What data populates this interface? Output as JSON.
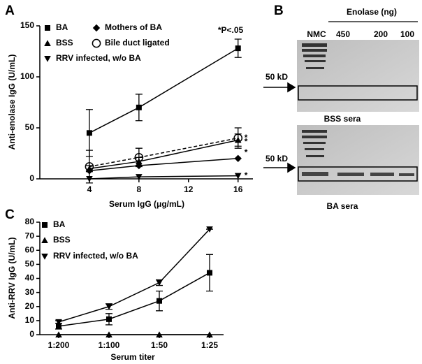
{
  "chart_data": [
    {
      "type": "line",
      "panel": "A",
      "annotation": "*P<.05",
      "x_label": "Serum IgG (μg/mL)",
      "y_label": "Anti-enolase IgG (U/mL)",
      "x": [
        4,
        8,
        16
      ],
      "xlim": [
        0,
        17.2
      ],
      "xticks": [
        4,
        8,
        12,
        16
      ],
      "ylim": [
        0,
        150
      ],
      "yticks": [
        0,
        50,
        100,
        150
      ],
      "series": [
        {
          "name": "BA",
          "color": "#000000",
          "marker": "square",
          "values": [
            45,
            70,
            128
          ],
          "errors": [
            23,
            13,
            9
          ]
        },
        {
          "name": "Mothers of BA",
          "color": "#000000",
          "marker": "diamond",
          "values": [
            8,
            13,
            20
          ],
          "end_label": "*"
        },
        {
          "name": "BSS",
          "color": "#000000",
          "marker": "triangle-up",
          "values": [
            10,
            17,
            38
          ],
          "errors": [
            3,
            4,
            6
          ],
          "end_label": "*"
        },
        {
          "name": "Bile duct ligated",
          "color": "#000000",
          "marker": "circle-open",
          "dashed": true,
          "values": [
            12,
            21,
            40
          ],
          "errors": [
            16,
            9,
            10
          ],
          "end_label": "*"
        },
        {
          "name": "RRV infected, w/o BA",
          "color": "#000000",
          "marker": "triangle-down",
          "values": [
            0,
            2,
            3
          ],
          "end_label": "*"
        }
      ]
    },
    {
      "type": "line",
      "panel": "C",
      "x_label": "Serum titer",
      "y_label": "Anti-RRV IgG (U/mL)",
      "categories": [
        "1:200",
        "1:100",
        "1:50",
        "1:25"
      ],
      "ylim": [
        0,
        80
      ],
      "yticks": [
        0,
        10,
        20,
        30,
        40,
        50,
        60,
        70,
        80
      ],
      "series": [
        {
          "name": "BA",
          "color": "#000000",
          "marker": "square",
          "values": [
            6,
            11,
            24,
            44
          ],
          "errors": [
            2,
            4,
            7,
            13
          ]
        },
        {
          "name": "BSS",
          "color": "#000000",
          "marker": "triangle-up",
          "values": [
            0,
            0,
            0,
            0
          ]
        },
        {
          "name": "RRV infected, w/o BA",
          "color": "#000000",
          "marker": "triangle-down",
          "values": [
            9,
            20,
            37,
            75
          ],
          "errors": [
            1,
            2,
            2,
            0
          ]
        }
      ]
    }
  ],
  "panel_b": {
    "panel": "B",
    "header": "Enolase (ng)",
    "lanes": [
      "NMC",
      "450",
      "200",
      "100"
    ],
    "blots": [
      {
        "marker": "50 kD",
        "caption": "BSS sera"
      },
      {
        "marker": "50 kD",
        "caption": "BA sera"
      }
    ]
  }
}
